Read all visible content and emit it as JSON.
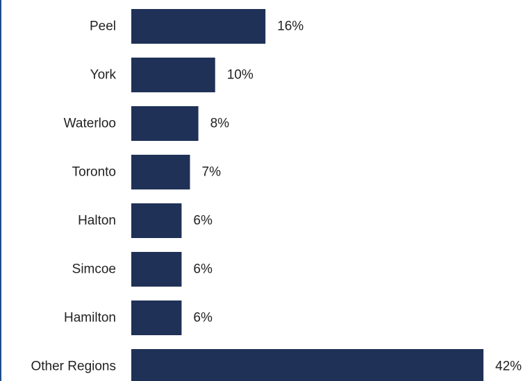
{
  "chart_data": {
    "type": "bar",
    "orientation": "horizontal",
    "categories": [
      "Peel",
      "York",
      "Waterloo",
      "Toronto",
      "Halton",
      "Simcoe",
      "Hamilton",
      "Other Regions"
    ],
    "values": [
      16,
      10,
      8,
      7,
      6,
      6,
      6,
      42
    ],
    "value_labels": [
      "16%",
      "10%",
      "8%",
      "7%",
      "6%",
      "6%",
      "6%",
      "42%"
    ],
    "unit": "%",
    "bar_color": "#1f3157",
    "grid": false,
    "legend": "none",
    "xlim": [
      0,
      42
    ]
  }
}
